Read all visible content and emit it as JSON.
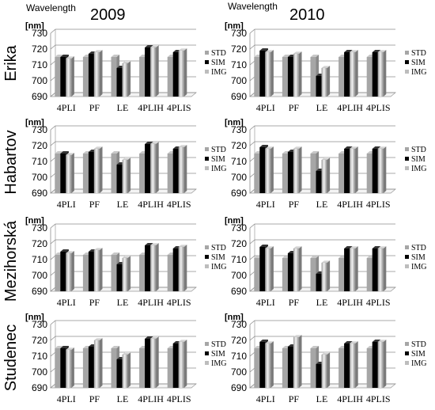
{
  "figure": {
    "wavelength_label": "Wavelength",
    "unit_label": "[nm]",
    "columns": [
      "2009",
      "2010"
    ],
    "rows": [
      "Erika",
      "Habartov",
      "Mezihorská",
      "Studenec"
    ]
  },
  "colors": {
    "STD": "#a6a6a6",
    "SIM": "#000000",
    "IMG": "#bdbdbd"
  },
  "chart_data": [
    {
      "type": "bar",
      "row": "Erika",
      "year": "2009",
      "categories": [
        "4PLI",
        "PF",
        "LE",
        "4PLIH",
        "4PLIS"
      ],
      "series": [
        {
          "name": "STD",
          "values": [
            715,
            715,
            715,
            715,
            715
          ]
        },
        {
          "name": "SIM",
          "values": [
            715,
            717,
            708,
            721,
            718
          ]
        },
        {
          "name": "IMG",
          "values": [
            714,
            718,
            711,
            721,
            719
          ]
        }
      ],
      "ylabel": "[nm]",
      "ylim": [
        690,
        730
      ],
      "yticks": [
        690,
        700,
        710,
        720,
        730
      ],
      "legend": "right"
    },
    {
      "type": "bar",
      "row": "Erika",
      "year": "2010",
      "categories": [
        "4PLI",
        "PF",
        "LE",
        "4PLIH",
        "4PLIS"
      ],
      "series": [
        {
          "name": "STD",
          "values": [
            715,
            715,
            715,
            715,
            715
          ]
        },
        {
          "name": "SIM",
          "values": [
            719,
            715,
            703,
            718,
            718
          ]
        },
        {
          "name": "IMG",
          "values": [
            718,
            717,
            708,
            718,
            718
          ]
        }
      ],
      "ylabel": "[nm]",
      "ylim": [
        690,
        730
      ],
      "yticks": [
        690,
        700,
        710,
        720,
        730
      ],
      "legend": "right"
    },
    {
      "type": "bar",
      "row": "Habartov",
      "year": "2009",
      "categories": [
        "4PLI",
        "PF",
        "LE",
        "4PLIH",
        "4PLIS"
      ],
      "series": [
        {
          "name": "STD",
          "values": [
            715,
            715,
            715,
            715,
            715
          ]
        },
        {
          "name": "SIM",
          "values": [
            715,
            716,
            708,
            721,
            718
          ]
        },
        {
          "name": "IMG",
          "values": [
            714,
            718,
            711,
            721,
            719
          ]
        }
      ],
      "ylabel": "[nm]",
      "ylim": [
        690,
        730
      ],
      "yticks": [
        690,
        700,
        710,
        720,
        730
      ],
      "legend": "right"
    },
    {
      "type": "bar",
      "row": "Habartov",
      "year": "2010",
      "categories": [
        "4PLI",
        "PF",
        "LE",
        "4PLIH",
        "4PLIS"
      ],
      "series": [
        {
          "name": "STD",
          "values": [
            715,
            715,
            715,
            715,
            715
          ]
        },
        {
          "name": "SIM",
          "values": [
            719,
            716,
            704,
            718,
            718
          ]
        },
        {
          "name": "IMG",
          "values": [
            718,
            718,
            711,
            718,
            718
          ]
        }
      ],
      "ylabel": "[nm]",
      "ylim": [
        690,
        730
      ],
      "yticks": [
        690,
        700,
        710,
        720,
        730
      ],
      "legend": "right"
    },
    {
      "type": "bar",
      "row": "Mezihorská",
      "year": "2009",
      "categories": [
        "4PLI",
        "PF",
        "LE",
        "4PLIH",
        "4PLIS"
      ],
      "series": [
        {
          "name": "STD",
          "values": [
            713,
            713,
            713,
            713,
            713
          ]
        },
        {
          "name": "SIM",
          "values": [
            715,
            715,
            707,
            719,
            717
          ]
        },
        {
          "name": "IMG",
          "values": [
            714,
            716,
            711,
            719,
            718
          ]
        }
      ],
      "ylabel": "[nm]",
      "ylim": [
        690,
        730
      ],
      "yticks": [
        690,
        700,
        710,
        720,
        730
      ],
      "legend": "right"
    },
    {
      "type": "bar",
      "row": "Mezihorská",
      "year": "2010",
      "categories": [
        "4PLI",
        "PF",
        "LE",
        "4PLIH",
        "4PLIS"
      ],
      "series": [
        {
          "name": "STD",
          "values": [
            711,
            711,
            711,
            711,
            711
          ]
        },
        {
          "name": "SIM",
          "values": [
            718,
            714,
            701,
            717,
            717
          ]
        },
        {
          "name": "IMG",
          "values": [
            717,
            717,
            708,
            717,
            717
          ]
        }
      ],
      "ylabel": "[nm]",
      "ylim": [
        690,
        730
      ],
      "yticks": [
        690,
        700,
        710,
        720,
        730
      ],
      "legend": "right"
    },
    {
      "type": "bar",
      "row": "Studenec",
      "year": "2009",
      "categories": [
        "4PLI",
        "PF",
        "LE",
        "4PLIH",
        "4PLIS"
      ],
      "series": [
        {
          "name": "STD",
          "values": [
            715,
            715,
            715,
            715,
            715
          ]
        },
        {
          "name": "SIM",
          "values": [
            715,
            716,
            708,
            721,
            718
          ]
        },
        {
          "name": "IMG",
          "values": [
            714,
            720,
            711,
            721,
            719
          ]
        }
      ],
      "ylabel": "[nm]",
      "ylim": [
        690,
        730
      ],
      "yticks": [
        690,
        700,
        710,
        720,
        730
      ],
      "legend": "right"
    },
    {
      "type": "bar",
      "row": "Studenec",
      "year": "2010",
      "categories": [
        "4PLI",
        "PF",
        "LE",
        "4PLIH",
        "4PLIS"
      ],
      "series": [
        {
          "name": "STD",
          "values": [
            715,
            715,
            715,
            715,
            715
          ]
        },
        {
          "name": "SIM",
          "values": [
            719,
            716,
            705,
            718,
            719
          ]
        },
        {
          "name": "IMG",
          "values": [
            718,
            722,
            711,
            718,
            719
          ]
        }
      ],
      "ylabel": "[nm]",
      "ylim": [
        690,
        730
      ],
      "yticks": [
        690,
        700,
        710,
        720,
        730
      ],
      "legend": "right"
    }
  ]
}
